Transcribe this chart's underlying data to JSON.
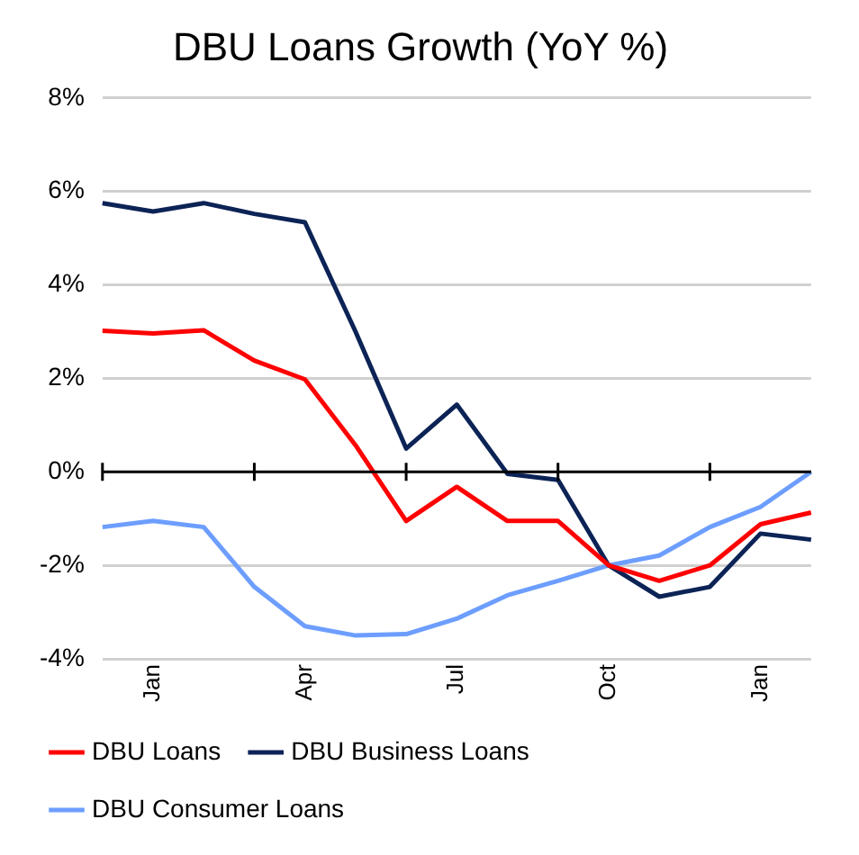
{
  "chart_data": {
    "type": "line",
    "title": "DBU Loans Growth (YoY %)",
    "categories": [
      null,
      "Jan",
      null,
      null,
      "Apr",
      null,
      null,
      "Jul",
      null,
      null,
      "Oct",
      null,
      null,
      "Jan",
      null
    ],
    "series": [
      {
        "name": "DBU Loans",
        "color": "#ff0000",
        "values": [
          3.02,
          2.96,
          3.03,
          2.38,
          1.98,
          0.57,
          -1.05,
          -0.32,
          -1.05,
          -1.05,
          -2.0,
          -2.33,
          -2.0,
          -1.12,
          -0.87
        ]
      },
      {
        "name": "DBU Business Loans",
        "color": "#0c2356",
        "values": [
          5.75,
          5.57,
          5.75,
          5.52,
          5.34,
          3.0,
          0.5,
          1.44,
          -0.04,
          -0.17,
          -2.0,
          -2.67,
          -2.46,
          -1.32,
          -1.45
        ]
      },
      {
        "name": "DBU Consumer Loans",
        "color": "#6d9eff",
        "values": [
          -1.18,
          -1.05,
          -1.18,
          -2.46,
          -3.3,
          -3.5,
          -3.47,
          -3.14,
          -2.64,
          -2.33,
          -2.0,
          -1.79,
          -1.18,
          -0.75,
          0.0
        ]
      }
    ],
    "ylim": [
      -4,
      8
    ],
    "yticks": [
      {
        "value": -4,
        "label": "-4%"
      },
      {
        "value": -2,
        "label": "-2%"
      },
      {
        "value": 0,
        "label": "0%"
      },
      {
        "value": 2,
        "label": "2%"
      },
      {
        "value": 4,
        "label": "4%"
      },
      {
        "value": 6,
        "label": "6%"
      },
      {
        "value": 8,
        "label": "8%"
      }
    ],
    "grid": "y",
    "legend": "bottom",
    "marker": "none",
    "line_style": "solid"
  }
}
